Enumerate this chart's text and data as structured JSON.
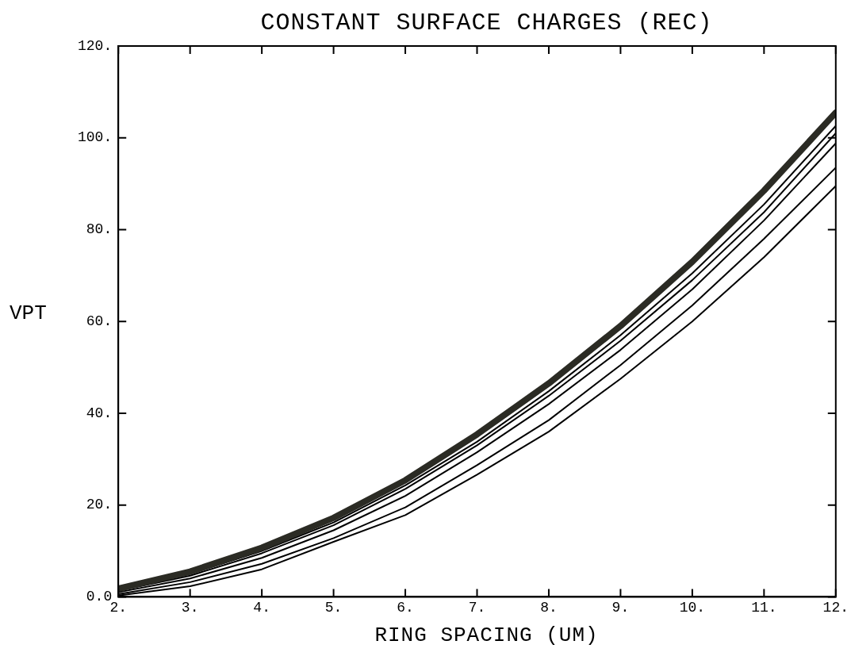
{
  "chart_data": {
    "type": "line",
    "title": "CONSTANT SURFACE CHARGES (REC)",
    "xlabel": "RING SPACING (UM)",
    "ylabel": "VPT",
    "x": [
      2,
      3,
      4,
      5,
      6,
      7,
      8,
      9,
      10,
      11,
      12
    ],
    "series": [
      {
        "color": "#2b2b24",
        "values": [
          1.8,
          5.5,
          10.7,
          17.2,
          25.4,
          35.4,
          46.5,
          59,
          73,
          88.5,
          105.5
        ]
      },
      {
        "color": "#000000",
        "values": [
          1.6,
          5,
          10,
          16.2,
          24.3,
          33.8,
          44.8,
          57,
          70.5,
          85.5,
          102.6
        ]
      },
      {
        "color": "#000000",
        "values": [
          1.3,
          4.6,
          9.5,
          15.6,
          23.5,
          33,
          43.8,
          55.8,
          69,
          83.8,
          101
        ]
      },
      {
        "color": "#000000",
        "values": [
          1,
          4,
          8.5,
          14.5,
          22,
          31.5,
          42,
          53.8,
          67,
          82,
          98.8
        ]
      },
      {
        "color": "#000000",
        "values": [
          0.6,
          3.2,
          7.2,
          12.8,
          19.5,
          28.7,
          38.5,
          50.5,
          63.5,
          78,
          93.5
        ]
      },
      {
        "color": "#000000",
        "values": [
          0.3,
          2.3,
          6,
          12,
          17.8,
          26.6,
          36,
          47.5,
          60,
          74,
          89.5
        ]
      }
    ],
    "xlim": [
      2,
      12
    ],
    "ylim": [
      0,
      120
    ],
    "xticks": [
      {
        "value": 2,
        "label": "2."
      },
      {
        "value": 3,
        "label": "3."
      },
      {
        "value": 4,
        "label": "4."
      },
      {
        "value": 5,
        "label": "5."
      },
      {
        "value": 6,
        "label": "6."
      },
      {
        "value": 7,
        "label": "7."
      },
      {
        "value": 8,
        "label": "8."
      },
      {
        "value": 9,
        "label": "9."
      },
      {
        "value": 10,
        "label": "10."
      },
      {
        "value": 11,
        "label": "11."
      },
      {
        "value": 12,
        "label": "12."
      }
    ],
    "yticks": [
      {
        "value": 0,
        "label": "0.0"
      },
      {
        "value": 20,
        "label": "20."
      },
      {
        "value": 40,
        "label": "40."
      },
      {
        "value": 60,
        "label": "60."
      },
      {
        "value": 80,
        "label": "80."
      },
      {
        "value": 100,
        "label": "100."
      },
      {
        "value": 120,
        "label": "120."
      }
    ],
    "grid": false,
    "legend": false,
    "marker": "none",
    "line_style": "solid"
  }
}
